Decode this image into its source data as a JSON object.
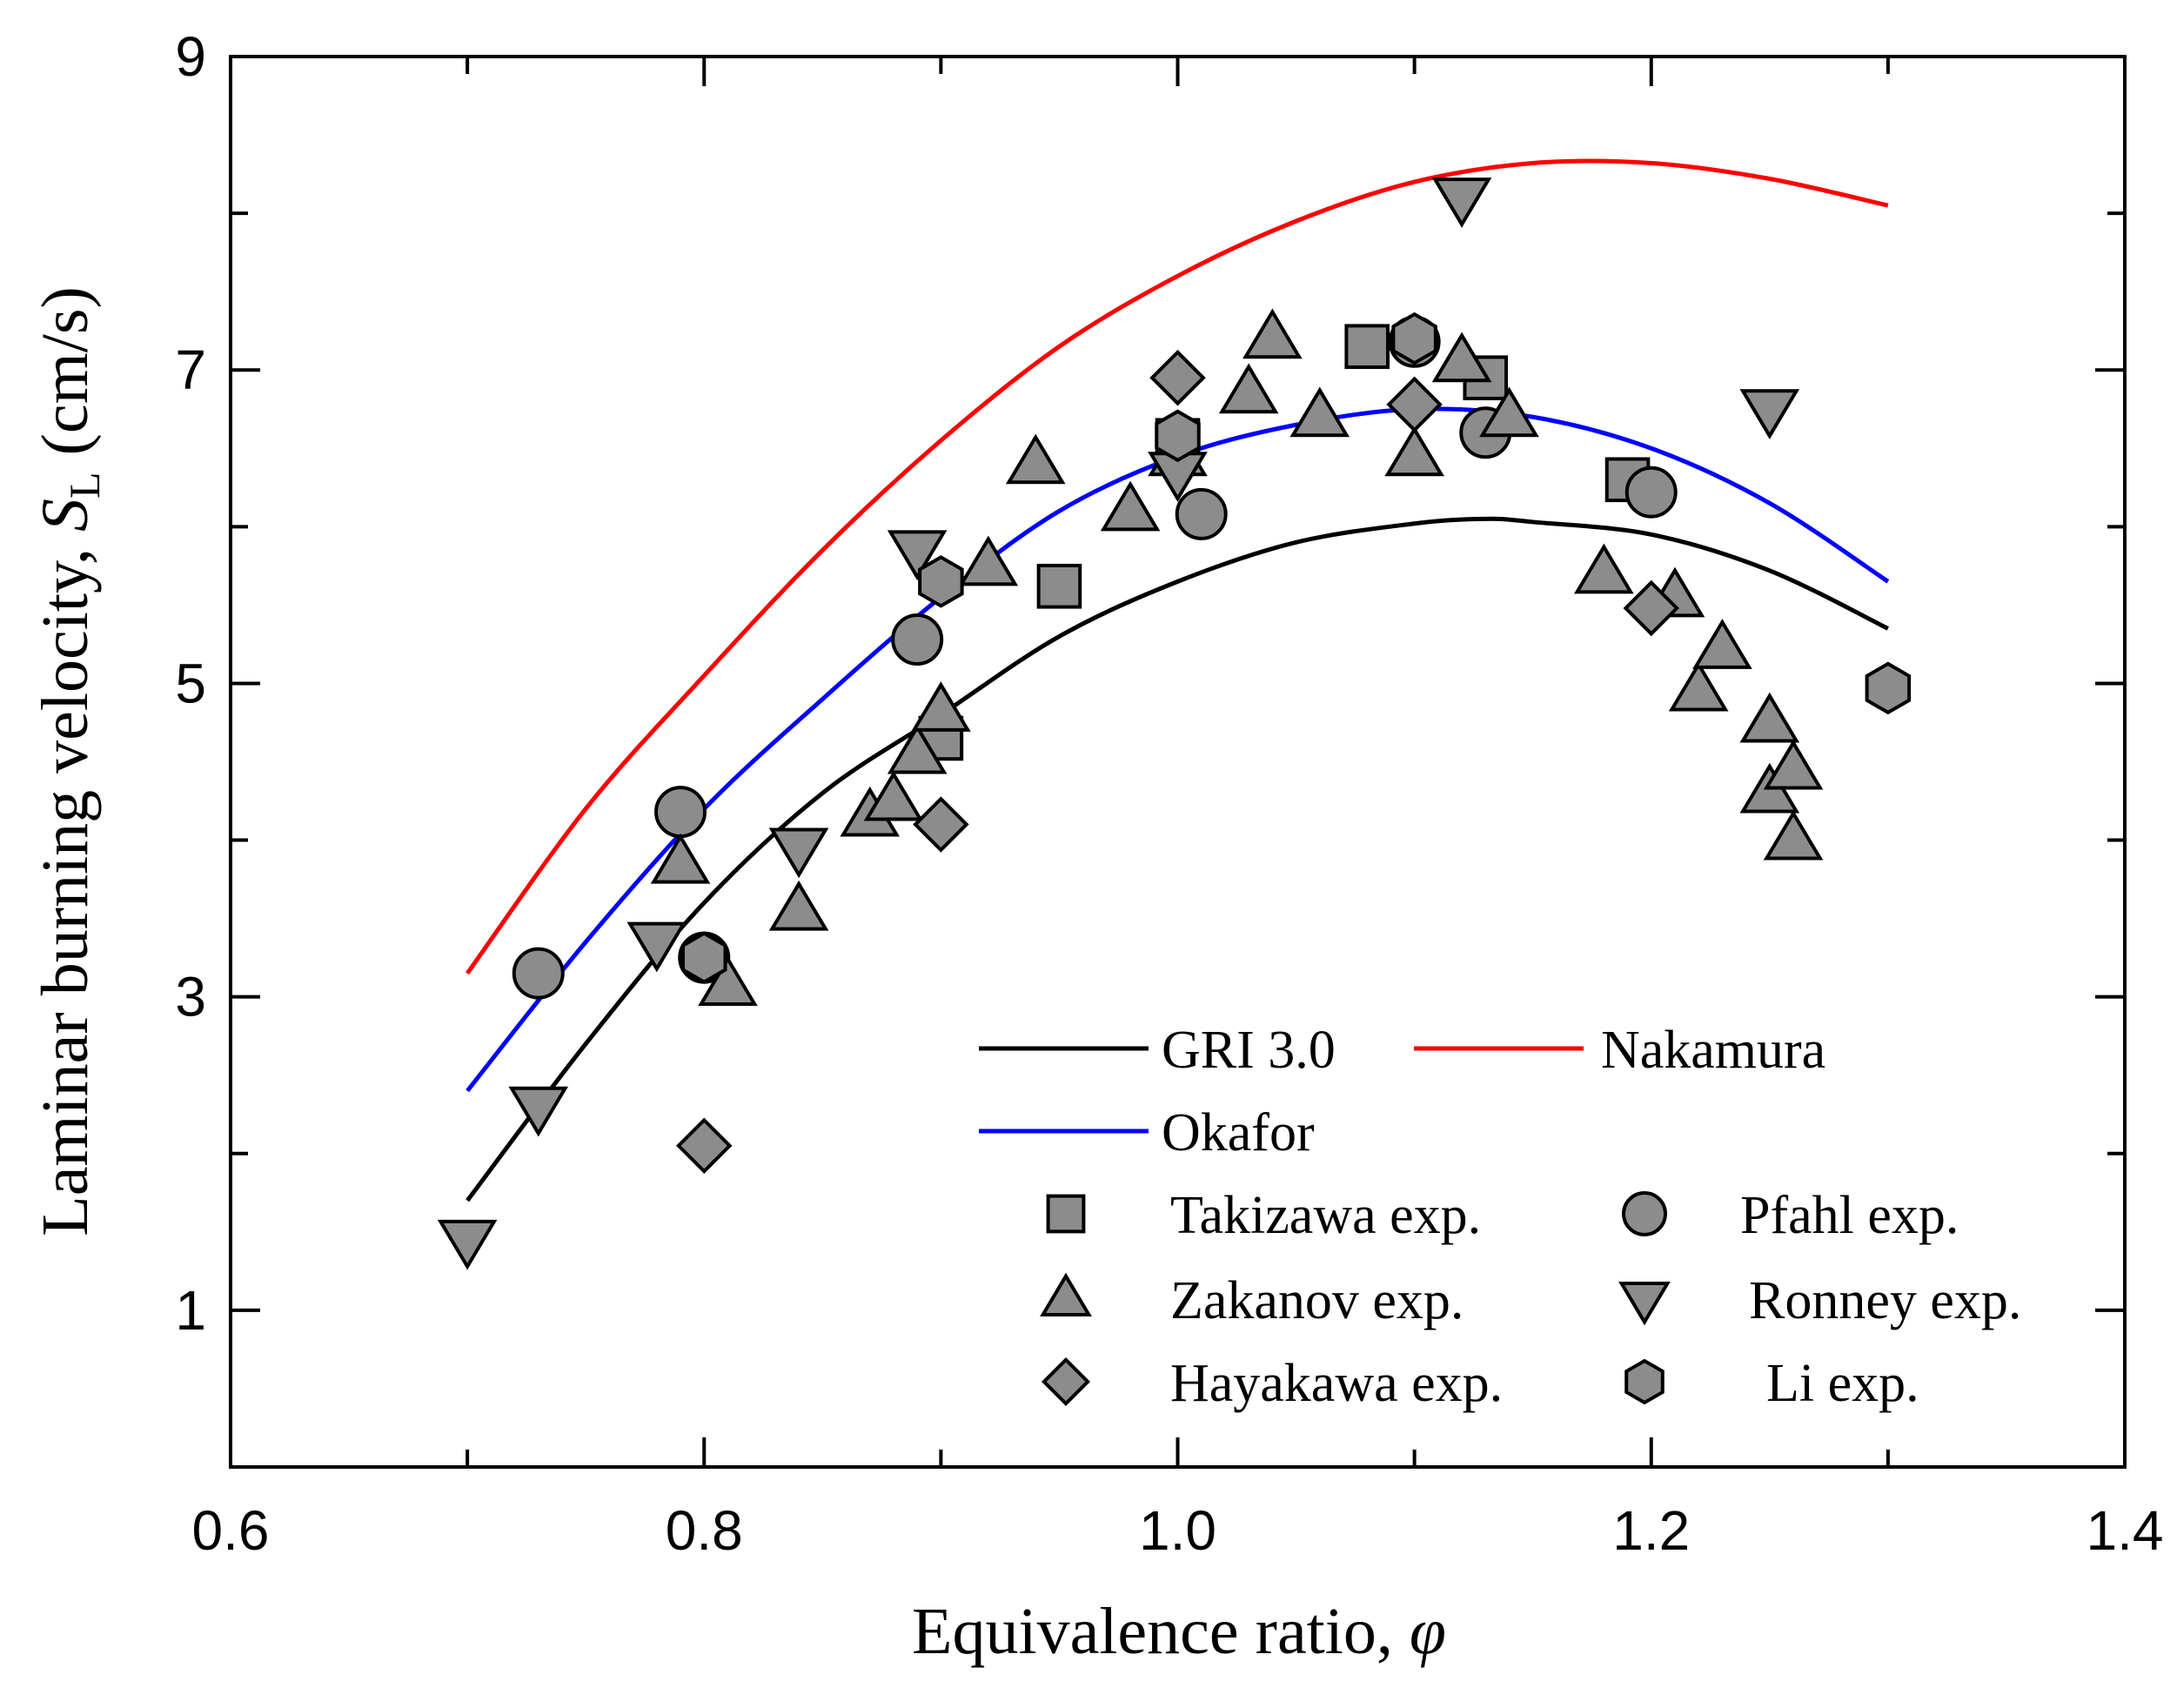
{
  "chart_data": {
    "type": "scatter",
    "title": "",
    "xlabel": "Equivalence ratio, ",
    "xlabel_symbol": "φ",
    "ylabel": "Laminar burning velocity, ",
    "ylabel_symbol": "S",
    "ylabel_subscript": "L",
    "ylabel_units": " (cm/s)",
    "xlim": [
      0.6,
      1.4
    ],
    "ylim": [
      0,
      9
    ],
    "xticks": [
      0.6,
      0.8,
      1.0,
      1.2,
      1.4
    ],
    "xtick_labels": [
      "0.6",
      "0.8",
      "1.0",
      "1.2",
      "1.4"
    ],
    "yticks": [
      1,
      3,
      5,
      7,
      9
    ],
    "ytick_labels": [
      "1",
      "3",
      "5",
      "7",
      "9"
    ],
    "grid": false,
    "legend_position": "bottom-right",
    "line_series": [
      {
        "name": "GRI 3.0",
        "color": "#000000",
        "x": [
          0.7,
          0.75,
          0.8,
          0.85,
          0.9,
          0.95,
          1.0,
          1.05,
          1.1,
          1.13,
          1.15,
          1.2,
          1.25,
          1.3
        ],
        "y": [
          1.7,
          2.7,
          3.6,
          4.3,
          4.8,
          5.3,
          5.65,
          5.9,
          6.02,
          6.05,
          6.03,
          5.95,
          5.72,
          5.35
        ]
      },
      {
        "name": "Nakamura",
        "color": "#ff0000",
        "x": [
          0.7,
          0.75,
          0.8,
          0.85,
          0.9,
          0.95,
          1.0,
          1.05,
          1.1,
          1.15,
          1.2,
          1.25,
          1.3
        ],
        "y": [
          3.15,
          4.2,
          5.05,
          5.85,
          6.55,
          7.15,
          7.6,
          7.95,
          8.2,
          8.32,
          8.32,
          8.22,
          8.05
        ]
      },
      {
        "name": "Okafor",
        "color": "#0000ff",
        "x": [
          0.7,
          0.75,
          0.8,
          0.85,
          0.9,
          0.95,
          1.0,
          1.05,
          1.1,
          1.15,
          1.2,
          1.25,
          1.3
        ],
        "y": [
          2.4,
          3.35,
          4.2,
          4.9,
          5.55,
          6.1,
          6.45,
          6.65,
          6.75,
          6.7,
          6.5,
          6.15,
          5.65
        ]
      }
    ],
    "scatter_series": [
      {
        "name": "Takizawa exp.",
        "marker": "square",
        "points": [
          [
            0.9,
            4.65
          ],
          [
            0.95,
            5.62
          ],
          [
            1.0,
            6.55
          ],
          [
            1.08,
            7.15
          ],
          [
            1.13,
            6.95
          ],
          [
            1.19,
            6.3
          ]
        ]
      },
      {
        "name": "Pfahl exp.",
        "marker": "circle",
        "points": [
          [
            0.73,
            3.15
          ],
          [
            0.79,
            4.18
          ],
          [
            0.8,
            3.25
          ],
          [
            0.89,
            5.28
          ],
          [
            1.01,
            6.08
          ],
          [
            1.1,
            7.18
          ],
          [
            1.13,
            6.6
          ],
          [
            1.2,
            6.22
          ]
        ]
      },
      {
        "name": "Zakanov exp.",
        "marker": "triangle-up",
        "points": [
          [
            0.79,
            3.85
          ],
          [
            0.81,
            3.07
          ],
          [
            0.84,
            3.55
          ],
          [
            0.87,
            4.15
          ],
          [
            0.88,
            4.25
          ],
          [
            0.89,
            4.55
          ],
          [
            0.9,
            4.82
          ],
          [
            0.92,
            5.75
          ],
          [
            0.94,
            6.4
          ],
          [
            0.98,
            6.1
          ],
          [
            1.0,
            6.45
          ],
          [
            1.03,
            6.85
          ],
          [
            1.04,
            7.2
          ],
          [
            1.06,
            6.7
          ],
          [
            1.1,
            6.45
          ],
          [
            1.12,
            7.05
          ],
          [
            1.14,
            6.7
          ],
          [
            1.18,
            5.7
          ],
          [
            1.21,
            5.55
          ],
          [
            1.22,
            4.95
          ],
          [
            1.23,
            5.22
          ],
          [
            1.25,
            4.75
          ],
          [
            1.25,
            4.3
          ],
          [
            1.26,
            4.45
          ],
          [
            1.26,
            4.0
          ]
        ]
      },
      {
        "name": "Ronney exp.",
        "marker": "triangle-down",
        "points": [
          [
            0.7,
            1.45
          ],
          [
            0.73,
            2.3
          ],
          [
            0.78,
            3.35
          ],
          [
            0.84,
            3.95
          ],
          [
            0.89,
            5.85
          ],
          [
            1.0,
            6.35
          ],
          [
            1.12,
            8.1
          ],
          [
            1.25,
            6.75
          ]
        ]
      },
      {
        "name": "Hayakawa exp.",
        "marker": "diamond",
        "points": [
          [
            0.8,
            2.05
          ],
          [
            0.9,
            4.1
          ],
          [
            1.0,
            6.95
          ],
          [
            1.1,
            6.78
          ],
          [
            1.2,
            5.48
          ]
        ]
      },
      {
        "name": "Li exp.",
        "marker": "hexagon",
        "points": [
          [
            0.8,
            3.25
          ],
          [
            0.9,
            5.65
          ],
          [
            1.0,
            6.58
          ],
          [
            1.1,
            7.2
          ],
          [
            1.3,
            4.97
          ]
        ]
      }
    ]
  }
}
